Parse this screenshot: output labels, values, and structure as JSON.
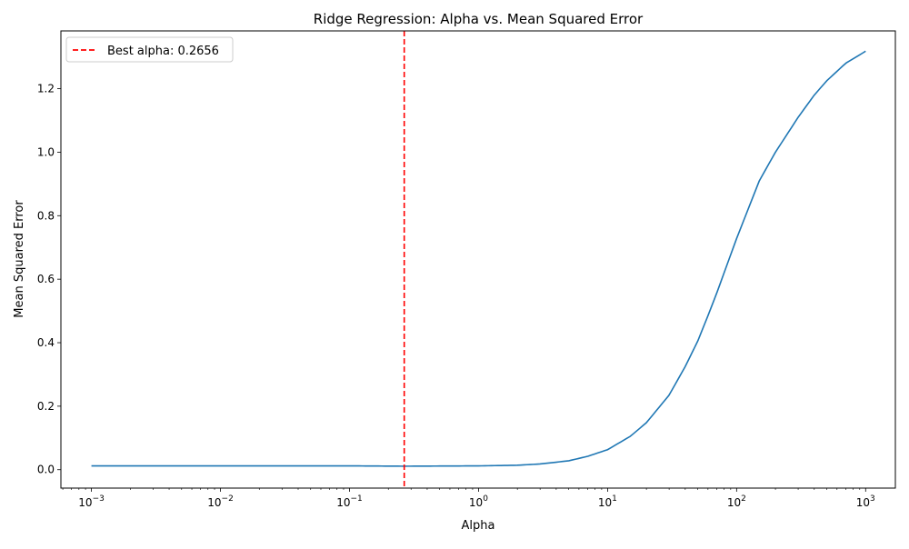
{
  "chart_data": {
    "type": "line",
    "title": "Ridge Regression: Alpha vs. Mean Squared Error",
    "xlabel": "Alpha",
    "ylabel": "Mean Squared Error",
    "xscale": "log",
    "xlim": [
      0.00058,
      1700
    ],
    "ylim": [
      -0.058,
      1.382
    ],
    "x_ticks": [
      {
        "value": 0.001,
        "base": "10",
        "exp": "−3"
      },
      {
        "value": 0.01,
        "base": "10",
        "exp": "−2"
      },
      {
        "value": 0.1,
        "base": "10",
        "exp": "−1"
      },
      {
        "value": 1,
        "base": "10",
        "exp": "0"
      },
      {
        "value": 10,
        "base": "10",
        "exp": "1"
      },
      {
        "value": 100,
        "base": "10",
        "exp": "2"
      },
      {
        "value": 1000,
        "base": "10",
        "exp": "3"
      }
    ],
    "y_ticks": [
      {
        "value": 0.0,
        "label": "0.0"
      },
      {
        "value": 0.2,
        "label": "0.2"
      },
      {
        "value": 0.4,
        "label": "0.4"
      },
      {
        "value": 0.6,
        "label": "0.6"
      },
      {
        "value": 0.8,
        "label": "0.8"
      },
      {
        "value": 1.0,
        "label": "1.0"
      },
      {
        "value": 1.2,
        "label": "1.2"
      }
    ],
    "series": [
      {
        "color": "#1f77b4",
        "x": [
          0.001,
          0.01,
          0.1,
          0.2656,
          1,
          2,
          3,
          5,
          7,
          10,
          15,
          20,
          30,
          40,
          50,
          60,
          70,
          80,
          100,
          150,
          200,
          300,
          400,
          500,
          700,
          1000
        ],
        "y": [
          0.012,
          0.012,
          0.012,
          0.011,
          0.012,
          0.014,
          0.018,
          0.028,
          0.042,
          0.063,
          0.105,
          0.148,
          0.235,
          0.325,
          0.405,
          0.485,
          0.555,
          0.62,
          0.728,
          0.91,
          1.0,
          1.11,
          1.18,
          1.225,
          1.28,
          1.318
        ]
      }
    ],
    "reference_line": {
      "orientation": "vertical",
      "x": 0.2656,
      "color": "#ff0000",
      "style": "dashed",
      "legend_label": "Best alpha: 0.2656"
    },
    "grid": false,
    "legend_position": "top-left"
  }
}
